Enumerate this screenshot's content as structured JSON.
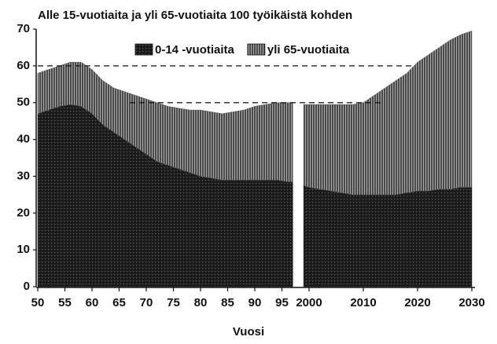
{
  "chart_data": {
    "type": "stacked_area",
    "title": "Alle 15-vuotiaita ja yli 65-vuotiaita 100 työikäistä kohden",
    "xlabel": "Vuosi",
    "x": [
      1950,
      1952,
      1954,
      1956,
      1958,
      1960,
      1962,
      1964,
      1966,
      1968,
      1970,
      1972,
      1974,
      1976,
      1978,
      1980,
      1982,
      1984,
      1986,
      1988,
      1990,
      1992,
      1994,
      1996,
      1997,
      1998,
      1999,
      2000,
      2002,
      2004,
      2006,
      2008,
      2010,
      2012,
      2014,
      2016,
      2018,
      2020,
      2022,
      2024,
      2026,
      2028,
      2030
    ],
    "series": [
      {
        "name": "0-14 -vuotiaita",
        "color": "#1c1c1c",
        "values": [
          47,
          48,
          49,
          49.5,
          49,
          47,
          44,
          42,
          40,
          38,
          36,
          34,
          33,
          32,
          31,
          30,
          29.5,
          29,
          29,
          29,
          29,
          29,
          29,
          28.5,
          28.5,
          null,
          27.5,
          27,
          26.5,
          26,
          25.5,
          25,
          25,
          25,
          25,
          25,
          25.5,
          26,
          26,
          26.5,
          26.5,
          27,
          27
        ]
      },
      {
        "name": "yli 65-vuotiaita",
        "color": "#5a5a5a",
        "values": [
          11,
          11,
          11,
          11.5,
          12,
          12,
          12,
          12,
          13,
          14,
          15,
          16,
          16,
          16.5,
          17,
          18,
          18,
          18,
          18.5,
          19,
          20,
          20.5,
          21,
          21.5,
          21.5,
          null,
          22,
          22.5,
          23,
          23.5,
          24,
          24.5,
          25,
          27,
          29,
          31,
          32.5,
          35,
          37,
          38.5,
          40.5,
          41.5,
          42.5
        ]
      }
    ],
    "reference_lines": [
      60,
      50
    ],
    "xlim": [
      1950,
      2030
    ],
    "xticks": [
      {
        "value": 1950,
        "label": "50"
      },
      {
        "value": 1955,
        "label": "55"
      },
      {
        "value": 1960,
        "label": "60"
      },
      {
        "value": 1965,
        "label": "65"
      },
      {
        "value": 1970,
        "label": "70"
      },
      {
        "value": 1975,
        "label": "75"
      },
      {
        "value": 1980,
        "label": "80"
      },
      {
        "value": 1985,
        "label": "85"
      },
      {
        "value": 1990,
        "label": "90"
      },
      {
        "value": 1995,
        "label": "95"
      },
      2000,
      2010,
      2020,
      2030
    ],
    "ylim": [
      0,
      70
    ],
    "yticks": [
      0,
      10,
      20,
      30,
      40,
      50,
      60,
      70
    ],
    "legend": "top"
  }
}
